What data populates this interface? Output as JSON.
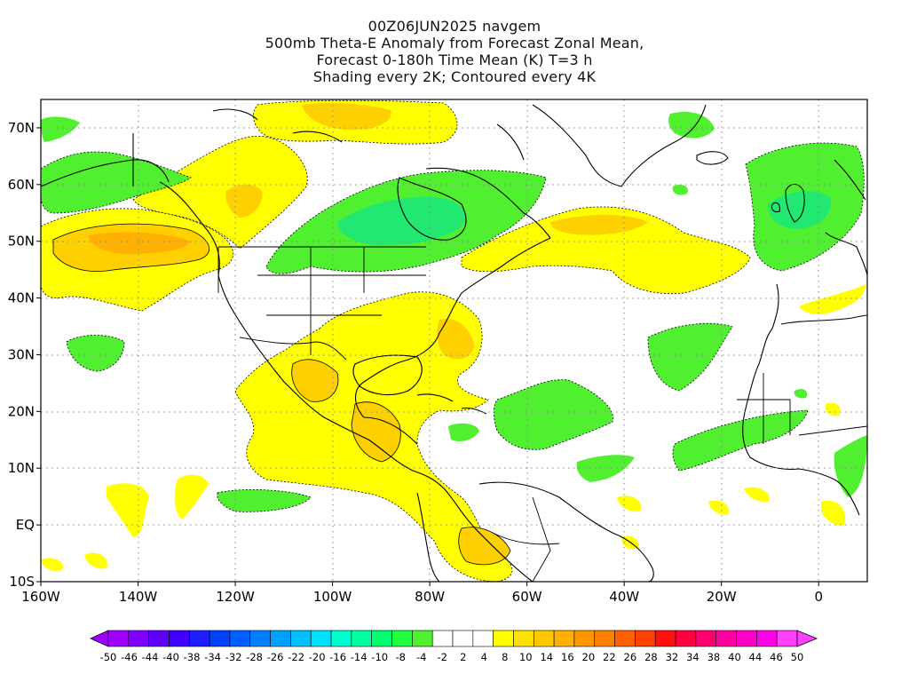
{
  "title": {
    "line1": "00Z06JUN2025 navgem",
    "line2": "500mb Theta-E Anomaly from Forecast Zonal Mean,",
    "line3": "Forecast 0-180h Time Mean (K) T=3 h",
    "line4": "Shading every 2K; Contoured every 4K"
  },
  "map": {
    "lon_range": [
      -160,
      10
    ],
    "lat_range": [
      -10,
      75
    ],
    "lat_labels": [
      "70N",
      "60N",
      "50N",
      "40N",
      "30N",
      "20N",
      "10N",
      "EQ",
      "10S"
    ],
    "lat_values": [
      70,
      60,
      50,
      40,
      30,
      20,
      10,
      0,
      -10
    ],
    "lon_labels": [
      "160W",
      "140W",
      "120W",
      "100W",
      "80W",
      "60W",
      "40W",
      "20W",
      "0"
    ],
    "lon_values": [
      -160,
      -140,
      -120,
      -100,
      -80,
      -60,
      -40,
      -20,
      0
    ],
    "grid": "dotted"
  },
  "colorbar": {
    "labels": [
      "-50",
      "-46",
      "-44",
      "-40",
      "-38",
      "-34",
      "-32",
      "-28",
      "-26",
      "-22",
      "-20",
      "-16",
      "-14",
      "-10",
      "-8",
      "-4",
      "-2",
      "2",
      "4",
      "8",
      "10",
      "14",
      "16",
      "20",
      "22",
      "26",
      "28",
      "32",
      "34",
      "38",
      "40",
      "44",
      "46",
      "50"
    ],
    "colors": [
      "#a000ff",
      "#7f00ff",
      "#5f00ff",
      "#3f00ff",
      "#1f1fff",
      "#0040ff",
      "#0060ff",
      "#0080ff",
      "#00a0ff",
      "#00c0ff",
      "#00e0ff",
      "#00ffd0",
      "#00ffa0",
      "#00ff70",
      "#20ff40",
      "#50f030",
      "#ffffff",
      "#ffffff",
      "#ffffff",
      "#ffff00",
      "#ffe000",
      "#ffc800",
      "#ffb000",
      "#ff9800",
      "#ff8000",
      "#ff6000",
      "#ff4000",
      "#ff1010",
      "#ff0040",
      "#ff0070",
      "#ff00a0",
      "#ff00c8",
      "#ff00e8",
      "#ff40ff"
    ]
  },
  "colors": {
    "positive_weak": "#ffff00",
    "positive_mid": "#ffd000",
    "positive_strong": "#ffa000",
    "negative_weak": "#50f030",
    "negative_mid": "#20e870"
  }
}
